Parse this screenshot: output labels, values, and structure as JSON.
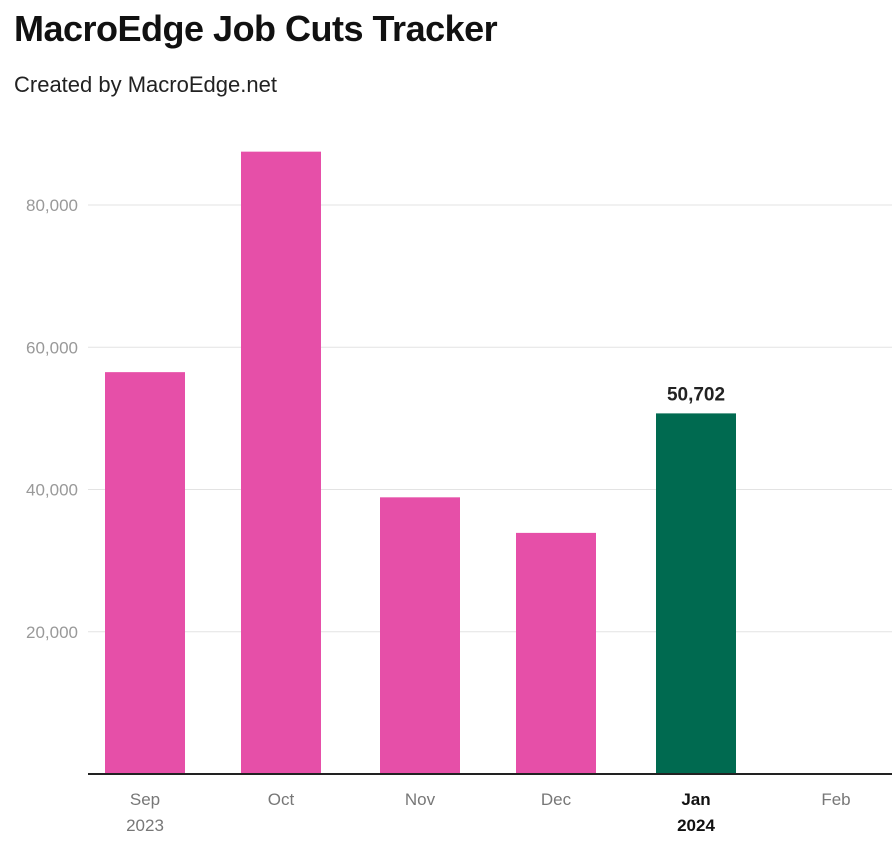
{
  "header": {
    "title": "MacroEdge Job Cuts Tracker",
    "subtitle": "Created by MacroEdge.net"
  },
  "colors": {
    "bar": "#e64fa8",
    "highlight": "#006a50",
    "grid": "#e3e3e3",
    "axis": "#222222"
  },
  "chart_data": {
    "type": "bar",
    "title": "MacroEdge Job Cuts Tracker",
    "subtitle": "Created by MacroEdge.net",
    "xlabel": "",
    "ylabel": "",
    "categories": [
      "Sep 2023",
      "Oct",
      "Nov",
      "Dec",
      "Jan 2024",
      "Feb"
    ],
    "category_lines": [
      [
        "Sep",
        "2023"
      ],
      [
        "Oct"
      ],
      [
        "Nov"
      ],
      [
        "Dec"
      ],
      [
        "Jan",
        "2024"
      ],
      [
        "Feb"
      ]
    ],
    "values": [
      56500,
      87500,
      38900,
      33900,
      50702,
      null
    ],
    "highlight_index": 4,
    "data_labels": [
      {
        "index": 4,
        "text": "50,702"
      }
    ],
    "ylim": [
      0,
      95000
    ],
    "yticks": [
      20000,
      40000,
      60000,
      80000
    ],
    "ytick_labels": [
      "20,000",
      "40,000",
      "60,000",
      "80,000"
    ],
    "grid": true,
    "legend": "none"
  }
}
